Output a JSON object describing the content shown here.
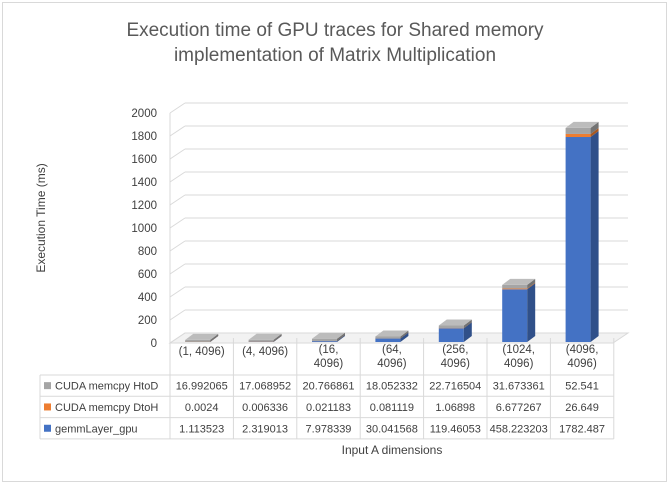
{
  "chart_data": {
    "type": "bar",
    "stacked": true,
    "three_d": true,
    "title_lines": [
      "Execution time of GPU traces for Shared memory",
      "implementation of Matrix Multiplication"
    ],
    "xlabel": "Input A dimensions",
    "ylabel": "Execution Time (ms)",
    "ylim": [
      0,
      2000
    ],
    "yticks": [
      0,
      200,
      400,
      600,
      800,
      1000,
      1200,
      1400,
      1600,
      1800,
      2000
    ],
    "ytick_labels": [
      "0",
      "200",
      "400",
      "600",
      "800",
      "1000",
      "1200",
      "1400",
      "1600",
      "1800",
      "2000"
    ],
    "grid": true,
    "legend": "data-table",
    "categories": [
      [
        "(1, 4096)"
      ],
      [
        "(4, 4096)"
      ],
      [
        "(16,",
        "4096)"
      ],
      [
        "(64,",
        "4096)"
      ],
      [
        "(256,",
        "4096)"
      ],
      [
        "(1024,",
        "4096)"
      ],
      [
        "(4096,",
        "4096)"
      ]
    ],
    "series": [
      {
        "name": "CUDA memcpy HtoD",
        "color": "#a5a5a5",
        "values": [
          16.992065,
          17.068952,
          20.766861,
          18.052332,
          22.716504,
          31.673361,
          52.541
        ],
        "labels": [
          "16.992065",
          "17.068952",
          "20.766861",
          "18.052332",
          "22.716504",
          "31.673361",
          "52.541"
        ]
      },
      {
        "name": "CUDA memcpy DtoH",
        "color": "#ed7d31",
        "values": [
          0.0024,
          0.006336,
          0.021183,
          0.081119,
          1.06898,
          6.677267,
          26.649
        ],
        "labels": [
          "0.0024",
          "0.006336",
          "0.021183",
          "0.081119",
          "1.06898",
          "6.677267",
          "26.649"
        ]
      },
      {
        "name": "gemmLayer_gpu",
        "color": "#4472c4",
        "values": [
          1.113523,
          2.319013,
          7.978339,
          30.041568,
          119.46053,
          458.223203,
          1782.487
        ],
        "labels": [
          "1.113523",
          "2.319013",
          "7.978339",
          "30.041568",
          "119.46053",
          "458.223203",
          "1782.487"
        ]
      }
    ],
    "stack_order": [
      "gemmLayer_gpu",
      "CUDA memcpy DtoH",
      "CUDA memcpy HtoD"
    ]
  }
}
